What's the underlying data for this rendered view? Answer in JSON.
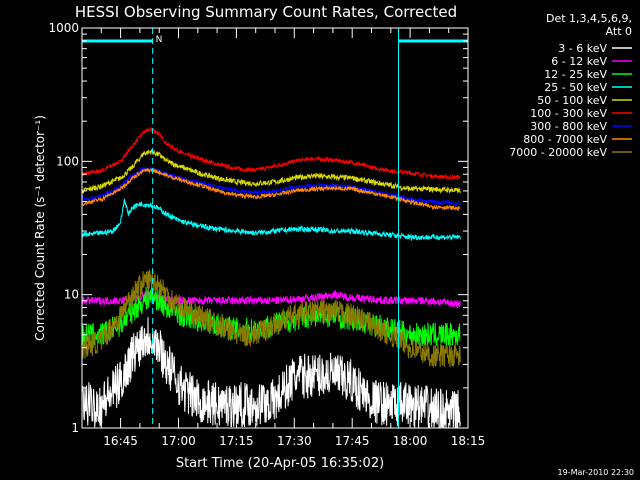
{
  "chart_data": {
    "type": "line",
    "title": "HESSI Observing Summary Count Rates, Corrected",
    "xlabel": "Start Time (20-Apr-05 16:35:02)",
    "ylabel": "Corrected Count Rate (s⁻¹ detector⁻¹)",
    "yscale": "log",
    "xlim_minutes": [
      0,
      100
    ],
    "ylim": [
      1,
      1000
    ],
    "x_ticks": [
      {
        "minute": 10,
        "label": "16:45"
      },
      {
        "minute": 25,
        "label": "17:00"
      },
      {
        "minute": 40,
        "label": "17:15"
      },
      {
        "minute": 55,
        "label": "17:30"
      },
      {
        "minute": 70,
        "label": "17:45"
      },
      {
        "minute": 85,
        "label": "18:00"
      },
      {
        "minute": 100,
        "label": "18:15"
      }
    ],
    "y_ticks": [
      {
        "value": 1,
        "label": "1"
      },
      {
        "value": 10,
        "label": "10"
      },
      {
        "value": 100,
        "label": "100"
      },
      {
        "value": 1000,
        "label": "1000"
      }
    ],
    "legend": {
      "position": "right",
      "header": [
        "Det 1,3,4,5,6,9,",
        "Att 0"
      ],
      "entries": [
        {
          "name": "3 - 6 keV",
          "color": "#ffffff"
        },
        {
          "name": "6 - 12 keV",
          "color": "#ff00ff"
        },
        {
          "name": "12 - 25 keV",
          "color": "#00ff00"
        },
        {
          "name": "25 - 50 keV",
          "color": "#00ffff"
        },
        {
          "name": "50 - 100 keV",
          "color": "#d8d800"
        },
        {
          "name": "100 - 300 keV",
          "color": "#ff0000"
        },
        {
          "name": "300 - 800 keV",
          "color": "#0000ff"
        },
        {
          "name": "800 - 7000 keV",
          "color": "#ff8800"
        },
        {
          "name": "7000 - 20000 keV",
          "color": "#8a7a00"
        }
      ]
    },
    "annotations": {
      "night_intervals_minutes": [
        [
          0,
          18.3
        ],
        [
          82,
          100
        ]
      ],
      "saa_marker_minute": 18.3,
      "saa_label": "N",
      "vertical_dashed_minutes": [
        18.3,
        100
      ],
      "vertical_solid_minutes": [
        82
      ]
    },
    "series": [
      {
        "name": "100 - 300 keV",
        "color": "#ff0000",
        "x": [
          0,
          5,
          10,
          13,
          16,
          18,
          20,
          22,
          26,
          30,
          35,
          40,
          45,
          50,
          55,
          60,
          65,
          70,
          75,
          80,
          85,
          90,
          95,
          98
        ],
        "y": [
          80,
          85,
          100,
          130,
          165,
          175,
          160,
          135,
          115,
          105,
          95,
          88,
          86,
          92,
          100,
          105,
          102,
          98,
          90,
          85,
          82,
          78,
          76,
          76
        ]
      },
      {
        "name": "50 - 100 keV",
        "color": "#d8d800",
        "x": [
          0,
          5,
          10,
          13,
          16,
          18,
          20,
          22,
          26,
          30,
          35,
          40,
          45,
          50,
          55,
          60,
          65,
          70,
          75,
          80,
          85,
          90,
          95,
          98
        ],
        "y": [
          60,
          65,
          75,
          90,
          115,
          118,
          112,
          100,
          90,
          82,
          75,
          70,
          68,
          70,
          75,
          78,
          76,
          75,
          70,
          66,
          62,
          62,
          61,
          60
        ]
      },
      {
        "name": "300 - 800 keV",
        "color": "#0000ff",
        "x": [
          0,
          5,
          10,
          13,
          16,
          18,
          20,
          22,
          26,
          30,
          35,
          40,
          45,
          50,
          55,
          60,
          65,
          70,
          75,
          80,
          85,
          90,
          95,
          98
        ],
        "y": [
          52,
          55,
          65,
          78,
          88,
          88,
          85,
          80,
          74,
          70,
          64,
          60,
          58,
          60,
          64,
          66,
          66,
          64,
          60,
          56,
          52,
          50,
          49,
          48
        ]
      },
      {
        "name": "800 - 7000 keV",
        "color": "#ff8800",
        "x": [
          0,
          5,
          10,
          13,
          16,
          18,
          20,
          22,
          26,
          30,
          35,
          40,
          45,
          50,
          55,
          60,
          65,
          70,
          75,
          80,
          85,
          90,
          95,
          98
        ],
        "y": [
          48,
          52,
          62,
          75,
          85,
          86,
          83,
          78,
          72,
          67,
          60,
          56,
          54,
          56,
          60,
          62,
          63,
          62,
          58,
          54,
          50,
          46,
          45,
          44
        ]
      },
      {
        "name": "25 - 50 keV",
        "color": "#00ffff",
        "x": [
          0,
          5,
          8,
          10,
          11,
          12,
          13,
          15,
          18,
          20,
          22,
          25,
          28,
          30,
          35,
          40,
          45,
          50,
          55,
          60,
          65,
          70,
          75,
          80,
          85,
          90,
          95,
          98
        ],
        "y": [
          28,
          29,
          30,
          35,
          52,
          40,
          45,
          48,
          47,
          44,
          40,
          36,
          34,
          33,
          31,
          30,
          29,
          30,
          31,
          31,
          30,
          30,
          29,
          28,
          27,
          27,
          27,
          27
        ]
      },
      {
        "name": "6 - 12 keV",
        "color": "#ff00ff",
        "x": [
          0,
          10,
          14,
          17,
          20,
          25,
          30,
          40,
          50,
          60,
          65,
          70,
          80,
          90,
          98
        ],
        "y": [
          9,
          9,
          9.5,
          10,
          9.5,
          9,
          9,
          9,
          9,
          9.5,
          10,
          9.5,
          9,
          9,
          8.5
        ]
      },
      {
        "name": "12 - 25 keV",
        "color": "#00ff00",
        "x": [
          0,
          5,
          10,
          13,
          16,
          18,
          20,
          22,
          26,
          30,
          35,
          40,
          45,
          50,
          55,
          60,
          65,
          70,
          75,
          80,
          85,
          90,
          95,
          98
        ],
        "y": [
          5,
          5,
          6,
          7.5,
          9,
          10,
          9,
          8,
          7,
          6.5,
          6,
          5.5,
          5.5,
          6,
          6.5,
          7,
          7,
          6.5,
          6,
          5.5,
          5,
          5,
          5,
          5
        ]
      },
      {
        "name": "7000 - 20000 keV",
        "color": "#8a7a00",
        "x": [
          0,
          5,
          10,
          13,
          16,
          18,
          20,
          22,
          26,
          30,
          35,
          40,
          45,
          50,
          55,
          60,
          65,
          70,
          75,
          80,
          85,
          90,
          95,
          98
        ],
        "y": [
          4,
          4.5,
          7,
          10,
          12.5,
          13,
          12,
          10,
          8,
          7,
          6,
          5,
          5,
          6,
          7,
          7.5,
          7.5,
          7,
          6,
          5,
          4,
          3.5,
          3.5,
          3.5
        ]
      },
      {
        "name": "3 - 6 keV",
        "color": "#ffffff",
        "x": [
          0,
          5,
          10,
          13,
          16,
          18,
          20,
          22,
          26,
          30,
          35,
          40,
          45,
          50,
          55,
          60,
          65,
          70,
          75,
          80,
          85,
          90,
          95,
          98
        ],
        "y": [
          1.5,
          1.5,
          2.2,
          3.5,
          4.8,
          5,
          4,
          3,
          2,
          1.6,
          1.5,
          1.5,
          1.5,
          1.6,
          2.4,
          2.5,
          2.5,
          2.2,
          1.6,
          1.5,
          1.5,
          1.4,
          1.3,
          1.3
        ]
      }
    ]
  },
  "footer": {
    "timestamp": "19-Mar-2010 22:30"
  }
}
